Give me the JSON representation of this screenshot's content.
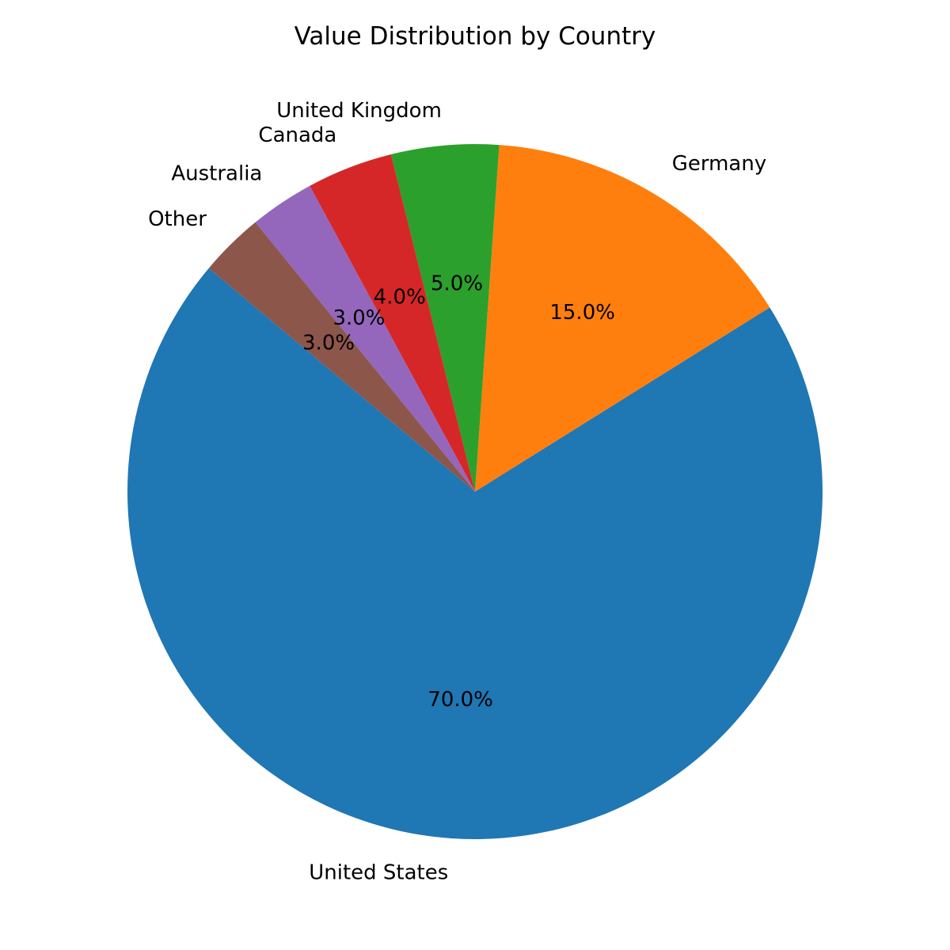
{
  "chart_data": {
    "type": "pie",
    "title": "Value Distribution by Country",
    "categories": [
      "United States",
      "Germany",
      "United Kingdom",
      "Canada",
      "Australia",
      "Other"
    ],
    "values": [
      70.0,
      15.0,
      5.0,
      4.0,
      3.0,
      3.0
    ],
    "percent_labels": [
      "70.0%",
      "15.0%",
      "5.0%",
      "4.0%",
      "3.0%",
      "3.0%"
    ],
    "colors": [
      "#1f77b4",
      "#ff7f0e",
      "#2ca02c",
      "#d62728",
      "#9467bd",
      "#8c564b"
    ],
    "start_angle_deg": 140,
    "direction": "counterclockwise",
    "legend": "none"
  }
}
